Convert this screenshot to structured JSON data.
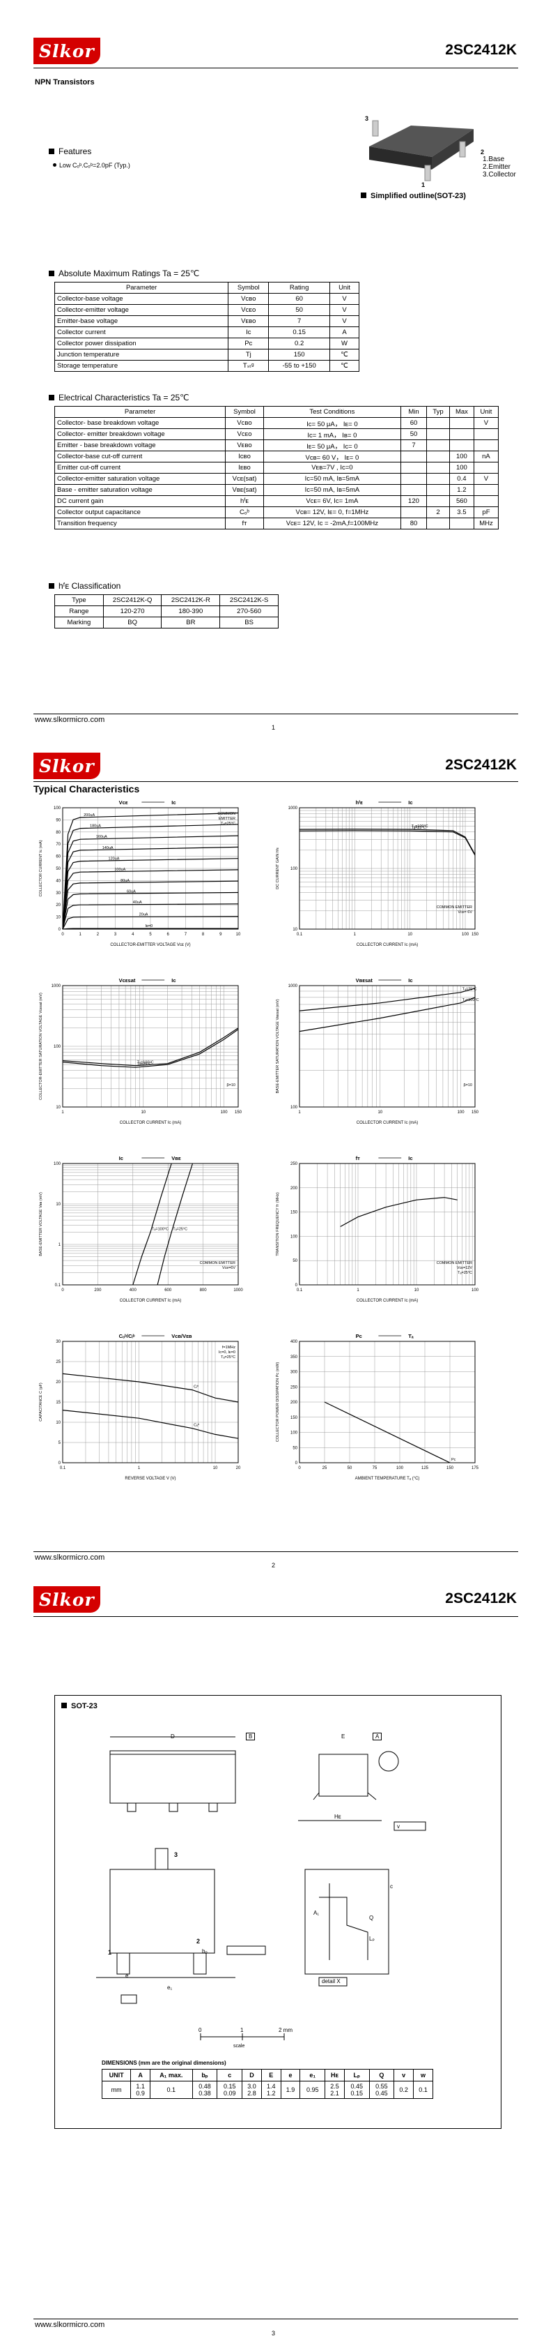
{
  "doc": {
    "brand": "Slkor",
    "part_number": "2SC2412K",
    "website": "www.slkormicro.com",
    "page_numbers": [
      "1",
      "2",
      "3"
    ]
  },
  "page1": {
    "subtitle": "NPN Transistors",
    "features_title": "Features",
    "feature_item": "Low Cₒᵇ.Cₒᵇ=2.0pF (Typ.)",
    "pinout": [
      "1.Base",
      "2.Emitter",
      "3.Collector"
    ],
    "pin_numbers": [
      "3",
      "1",
      "2"
    ],
    "outline_caption": "Simplified outline(SOT-23)",
    "abs_title": "Absolute Maximum Ratings Ta = 25℃",
    "abs_headers": [
      "Parameter",
      "Symbol",
      "Rating",
      "Unit"
    ],
    "abs_rows": [
      [
        "Collector-base voltage",
        "Vᴄʙᴏ",
        "60",
        "V"
      ],
      [
        "Collector-emitter voltage",
        "Vᴄᴇᴏ",
        "50",
        "V"
      ],
      [
        "Emitter-base voltage",
        "Vᴇʙᴏ",
        "7",
        "V"
      ],
      [
        "Collector current",
        "Ic",
        "0.15",
        "A"
      ],
      [
        "Collector power dissipation",
        "Pc",
        "0.2",
        "W"
      ],
      [
        "Junction temperature",
        "Tj",
        "150",
        "℃"
      ],
      [
        "Storage temperature",
        "Tₛₜᵍ",
        "-55 to +150",
        "℃"
      ]
    ],
    "elec_title": "Electrical Characteristics Ta = 25℃",
    "elec_headers": [
      "Parameter",
      "Symbol",
      "Test Conditions",
      "Min",
      "Typ",
      "Max",
      "Unit"
    ],
    "elec_rows": [
      [
        "Collector- base breakdown voltage",
        "Vᴄʙᴏ",
        "Ic= 50 μA， Iᴇ= 0",
        "60",
        "",
        "",
        "V"
      ],
      [
        "Collector- emitter breakdown voltage",
        "Vᴄᴇᴏ",
        "Ic= 1 mA， Iʙ= 0",
        "50",
        "",
        "",
        ""
      ],
      [
        "Emitter - base breakdown voltage",
        "Vᴇʙᴏ",
        "Iᴇ= 50 μA， Ic= 0",
        "7",
        "",
        "",
        ""
      ],
      [
        "Collector-base cut-off current",
        "Iᴄʙᴏ",
        "Vcʙ= 60 V， Iᴇ= 0",
        "",
        "",
        "100",
        "nA"
      ],
      [
        "Emitter cut-off current",
        "Iᴇʙᴏ",
        "Vᴇʙ=7V , Ic=0",
        "",
        "",
        "100",
        ""
      ],
      [
        "Collector-emitter saturation voltage",
        "Vᴄᴇ(sat)",
        "Ic=50 mA, Iʙ=5mA",
        "",
        "",
        "0.4",
        "V"
      ],
      [
        "Base - emitter saturation voltage",
        "Vʙᴇ(sat)",
        "Ic=50 mA, Iʙ=5mA",
        "",
        "",
        "1.2",
        ""
      ],
      [
        "DC current gain",
        "hᶠᴇ",
        "Vcᴇ= 6V, Ic= 1mA",
        "120",
        "",
        "560",
        ""
      ],
      [
        "Collector output capacitance",
        "Cₒᵇ",
        "Vcʙ= 12V, Iᴇ= 0, f=1MHz",
        "",
        "2",
        "3.5",
        "pF"
      ],
      [
        "Transition frequency",
        "fᴛ",
        "Vcᴇ= 12V, Iᴄ = -2mA,f=100MHz",
        "80",
        "",
        "",
        "MHz"
      ]
    ],
    "hfe_title": "hᶠᴇ Classification",
    "hfe_rows": [
      [
        "Type",
        "2SC2412K-Q",
        "2SC2412K-R",
        "2SC2412K-S"
      ],
      [
        "Range",
        "120-270",
        "180-390",
        "270-560"
      ],
      [
        "Marking",
        "BQ",
        "BR",
        "BS"
      ]
    ]
  },
  "page2": {
    "title": "Typical Characteristics",
    "charts": [
      {
        "name": "ic-vce",
        "title_left": "Vᴄᴇ",
        "title_right": "Iᴄ",
        "ylabel": "COLLECTOR CURRENT  Iᴄ  (mA)",
        "xlabel": "COLLECTOR-EMITTER VOLTAGE  Vᴄᴇ (V)",
        "note": [
          "COMMON",
          "EMITTER",
          "Tₐ=25°C"
        ],
        "curve_labels": [
          "200uA",
          "180uA",
          "160uA",
          "140uA",
          "120uA",
          "100uA",
          "80uA",
          "60uA",
          "40uA",
          "20uA",
          "Iʙ=0"
        ]
      },
      {
        "name": "hfe-ic",
        "title_left": "hᶠᴇ",
        "title_right": "Iᴄ",
        "ylabel": "DC CURRENT GAIN  hᶠᴇ",
        "xlabel": "COLLECTOR CURRENT  Iᴄ  (mA)",
        "note": [
          "COMMON EMITTER",
          "Vᴄᴇ= 6V"
        ],
        "curve_labels": [
          "Tₐ=100°C",
          "Tₐ=25°C"
        ]
      },
      {
        "name": "vcesat-ic",
        "title_left": "Vᴄᴇsat",
        "title_right": "Iᴄ",
        "ylabel": "COLLECTOR-EMITTER SATURATION VOLTAGE  Vᴄᴇsat  (mV)",
        "xlabel": "COLLECTOR CURRENT  Iᴄ  (mA)",
        "note": [
          "β=10"
        ],
        "curve_labels": [
          "Tₐ=100°C",
          "Tₐ=25°C"
        ]
      },
      {
        "name": "vbesat-ic",
        "title_left": "Vʙᴇsat",
        "title_right": "Iᴄ",
        "ylabel": "BASE-EMITTER SATURATION VOLTAGE  Vʙᴇsat  (mV)",
        "xlabel": "COLLECTOR CURRENT  Iᴄ  (mA)",
        "note": [
          "β=10"
        ],
        "curve_labels": [
          "Tₐ=25°C",
          "Tₐ=100°C"
        ]
      },
      {
        "name": "ic-vbe",
        "title_left": "Iᴄ",
        "title_right": "Vʙᴇ",
        "ylabel": "BASE-EMITTER VOLTAGE  Vʙᴇ  (mV)",
        "xlabel": "COLLECTOR CURRENT  Iᴄ  (mA)",
        "note": [
          "COMMON EMITTER",
          "Vᴄᴇ=6V"
        ],
        "curve_labels": [
          "Tₐ=100°C",
          "Tₐ=25°C"
        ]
      },
      {
        "name": "ft-ic",
        "title_left": "fᴛ",
        "title_right": "Iᴄ",
        "ylabel": "TRANSITION FREQUENCY  fᴛ  (MHz)",
        "xlabel": "COLLECTOR CURRENT  Iᴄ  (mA)",
        "note": [
          "COMMON EMITTER",
          "Vᴄᴇ=12V",
          "Tₐ=25°C"
        ],
        "curve_labels": []
      },
      {
        "name": "cap-v",
        "title_left": "Cₒᵇ/Cᵢᵇ",
        "title_right": "Vᴄʙ/Vᴇʙ",
        "ylabel": "CAPACITANCE  C  (pF)",
        "xlabel": "REVERSE VOLTAGE  V  (V)",
        "note": [
          "f=1MHz",
          "Iᴄ=0, Iᴇ=0",
          "Tₐ=25°C"
        ],
        "curve_labels": [
          "Cᵢᵇ",
          "Cₒᵇ"
        ]
      },
      {
        "name": "pc-ta",
        "title_left": "Pᴄ",
        "title_right": "Tₐ",
        "ylabel": "COLLECTOR POWER DISSIPATION  Pᴄ  (mW)",
        "xlabel": "AMBIENT TEMPERATURE  Tₐ  (°C)",
        "note": [],
        "curve_labels": []
      }
    ]
  },
  "chart_data": [
    {
      "type": "line",
      "title": "",
      "xlabel": "COLLECTOR-EMITTER VOLTAGE Vᴄᴇ (V)",
      "ylabel": "COLLECTOR CURRENT Iᴄ (mA)",
      "x_ticks": [
        "0",
        "1",
        "2",
        "3",
        "4",
        "5",
        "6",
        "7",
        "8",
        "9",
        "10"
      ],
      "xlim": [
        0,
        10
      ],
      "y_ticks": [
        "0",
        "10",
        "20",
        "30",
        "40",
        "50",
        "60",
        "70",
        "80",
        "90",
        "100"
      ],
      "ylim": [
        0,
        100
      ],
      "series": [
        {
          "name": "200uA",
          "level": 92
        },
        {
          "name": "180uA",
          "level": 83
        },
        {
          "name": "160uA",
          "level": 74
        },
        {
          "name": "140uA",
          "level": 65
        },
        {
          "name": "120uA",
          "level": 56
        },
        {
          "name": "100uA",
          "level": 47
        },
        {
          "name": "80uA",
          "level": 38
        },
        {
          "name": "60uA",
          "level": 29
        },
        {
          "name": "40uA",
          "level": 20
        },
        {
          "name": "20uA",
          "level": 10
        },
        {
          "name": "Iʙ=0",
          "level": 0.5
        }
      ]
    },
    {
      "type": "line",
      "scale": "log-log",
      "xlabel": "COLLECTOR CURRENT Iᴄ (mA)",
      "ylabel": "DC CURRENT GAIN hᶠᴇ",
      "x_ticks": [
        "0.1",
        "1",
        "10",
        "100",
        "150"
      ],
      "xlim": [
        0.1,
        150
      ],
      "y_ticks": [
        "10",
        "100",
        "1000"
      ],
      "ylim": [
        10,
        1000
      ],
      "series": [
        {
          "name": "Tₐ=100°C",
          "x": [
            0.1,
            1,
            10,
            60,
            100,
            150
          ],
          "y": [
            440,
            445,
            440,
            420,
            330,
            170
          ]
        },
        {
          "name": "Tₐ=25°C",
          "x": [
            0.1,
            1,
            10,
            60,
            100,
            150
          ],
          "y": [
            415,
            420,
            415,
            400,
            320,
            165
          ]
        }
      ]
    },
    {
      "type": "line",
      "scale": "log-log",
      "xlabel": "COLLECTOR CURRENT Iᴄ (mA)",
      "ylabel": "Vᴄᴇsat (mV)",
      "x_ticks": [
        "1",
        "10",
        "100",
        "150"
      ],
      "xlim": [
        1,
        150
      ],
      "y_ticks": [
        "10",
        "100",
        "1000"
      ],
      "ylim": [
        10,
        1000
      ],
      "series": [
        {
          "name": "Tₐ=100°C",
          "x": [
            1,
            3,
            8,
            20,
            50,
            100,
            150
          ],
          "y": [
            58,
            52,
            48,
            52,
            80,
            140,
            200
          ]
        },
        {
          "name": "Tₐ=25°C",
          "x": [
            1,
            3,
            8,
            20,
            50,
            100,
            150
          ],
          "y": [
            55,
            48,
            45,
            50,
            75,
            130,
            190
          ]
        }
      ]
    },
    {
      "type": "line",
      "scale": "log-log",
      "xlabel": "COLLECTOR CURRENT Iᴄ (mA)",
      "ylabel": "Vʙᴇsat (mV)",
      "x_ticks": [
        "1",
        "10",
        "100",
        "150"
      ],
      "xlim": [
        1,
        150
      ],
      "y_ticks": [
        "100",
        "1000"
      ],
      "ylim": [
        100,
        1000
      ],
      "series": [
        {
          "name": "Tₐ=25°C",
          "x": [
            1,
            10,
            100,
            150
          ],
          "y": [
            620,
            720,
            880,
            950
          ]
        },
        {
          "name": "Tₐ=100°C",
          "x": [
            1,
            10,
            100,
            150
          ],
          "y": [
            420,
            540,
            720,
            800
          ]
        }
      ]
    },
    {
      "type": "line",
      "scale": "log-y",
      "xlabel": "COLLECTOR CURRENT Iᴄ (mA)",
      "ylabel": "BASE-EMITTER VOLTAGE Vʙᴇ (mV)",
      "x_ticks": [
        "0",
        "200",
        "400",
        "600",
        "800",
        "1000"
      ],
      "xlim": [
        0,
        1000
      ],
      "y_ticks": [
        "0.1",
        "1",
        "10",
        "100"
      ],
      "ylim": [
        0.1,
        100
      ],
      "series": [
        {
          "name": "Tₐ=100°C",
          "x": [
            400,
            450,
            500,
            560,
            620
          ],
          "y": [
            0.1,
            0.5,
            2,
            15,
            100
          ]
        },
        {
          "name": "Tₐ=25°C",
          "x": [
            540,
            580,
            620,
            680,
            740
          ],
          "y": [
            0.1,
            0.5,
            2,
            15,
            100
          ]
        }
      ]
    },
    {
      "type": "line",
      "scale": "log-x",
      "xlabel": "COLLECTOR CURRENT Iᴄ (mA)",
      "ylabel": "TRANSITION FREQUENCY fᴛ (MHz)",
      "x_ticks": [
        "0.1",
        "1",
        "10",
        "100"
      ],
      "xlim": [
        0.1,
        100
      ],
      "y_ticks": [
        "0",
        "50",
        "100",
        "150",
        "200",
        "250"
      ],
      "ylim": [
        0,
        250
      ],
      "series": [
        {
          "name": "fᴛ",
          "x": [
            0.5,
            1,
            3,
            10,
            30,
            50
          ],
          "y": [
            120,
            140,
            160,
            175,
            180,
            175
          ]
        }
      ]
    },
    {
      "type": "line",
      "scale": "log-x",
      "xlabel": "REVERSE VOLTAGE V (V)",
      "ylabel": "CAPACITANCE C (pF)",
      "x_ticks": [
        "0.1",
        "1",
        "10",
        "20"
      ],
      "xlim": [
        0.1,
        20
      ],
      "y_ticks": [
        "0",
        "5",
        "10",
        "15",
        "20",
        "25",
        "30"
      ],
      "ylim": [
        0,
        30
      ],
      "series": [
        {
          "name": "Cᵢᵇ",
          "x": [
            0.1,
            1,
            5,
            10,
            20
          ],
          "y": [
            22,
            20,
            18,
            16,
            15
          ]
        },
        {
          "name": "Cₒᵇ",
          "x": [
            0.1,
            1,
            5,
            10,
            20
          ],
          "y": [
            13,
            11,
            8.5,
            7,
            6
          ]
        }
      ]
    },
    {
      "type": "line",
      "xlabel": "AMBIENT TEMPERATURE Tₐ (°C)",
      "ylabel": "COLLECTOR POWER DISSIPATION Pᴄ (mW)",
      "x_ticks": [
        "0",
        "25",
        "50",
        "75",
        "100",
        "125",
        "150",
        "175"
      ],
      "xlim": [
        0,
        175
      ],
      "y_ticks": [
        "0",
        "50",
        "100",
        "150",
        "200",
        "250",
        "300",
        "350",
        "400"
      ],
      "ylim": [
        0,
        400
      ],
      "series": [
        {
          "name": "Pᴄ",
          "x": [
            25,
            150
          ],
          "y": [
            200,
            0
          ]
        }
      ]
    }
  ],
  "page3": {
    "package_title": "SOT-23",
    "dim_labels": [
      "D",
      "B",
      "E",
      "A",
      "Hᴇ",
      "v",
      "M",
      "A",
      "e",
      "bₚ",
      "w",
      "M",
      "B",
      "e₁",
      "A₁",
      "Lₚ",
      "Q",
      "c",
      "detail X",
      "X",
      "A",
      "3",
      "1",
      "2"
    ],
    "scale_labels": [
      "0",
      "1",
      "2 mm",
      "scale"
    ],
    "dim_caption": "DIMENSIONS (mm are the original dimensions)",
    "dim_headers": [
      "UNIT",
      "A",
      "A₁ max.",
      "bₚ",
      "c",
      "D",
      "E",
      "e",
      "e₁",
      "Hᴇ",
      "Lₚ",
      "Q",
      "v",
      "w"
    ],
    "dim_rows": [
      [
        "mm",
        "1.1\n0.9",
        "0.1",
        "0.48\n0.38",
        "0.15\n0.09",
        "3.0\n2.8",
        "1.4\n1.2",
        "1.9",
        "0.95",
        "2.5\n2.1",
        "0.45\n0.15",
        "0.55\n0.45",
        "0.2",
        "0.1"
      ]
    ]
  }
}
